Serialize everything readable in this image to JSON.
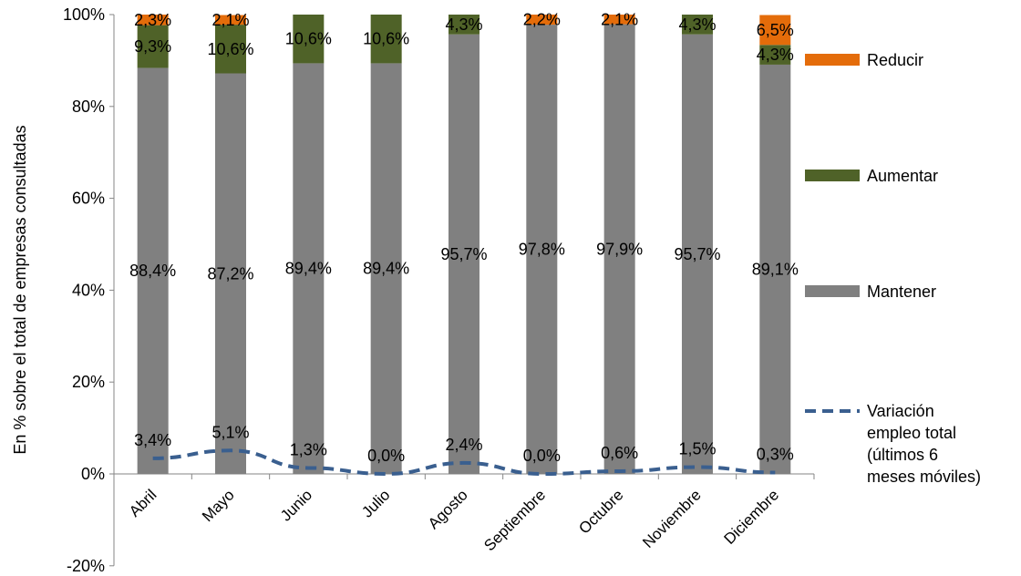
{
  "chart_data": {
    "type": "bar",
    "stacked": true,
    "ylabel": "En % sobre el total de empresas consultadas",
    "ylim": [
      -20,
      100
    ],
    "yticks": [
      "-20%",
      "0%",
      "20%",
      "40%",
      "60%",
      "80%",
      "100%"
    ],
    "grid": false,
    "legend_position": "right",
    "categories": [
      "Abril",
      "Mayo",
      "Junio",
      "Julio",
      "Agosto",
      "Septiembre",
      "Octubre",
      "Noviembre",
      "Diciembre"
    ],
    "series": [
      {
        "name": "Mantener",
        "type": "bar",
        "color": "#808080",
        "values": [
          88.4,
          87.2,
          89.4,
          89.4,
          95.7,
          97.8,
          97.9,
          95.7,
          89.1
        ],
        "labels": [
          "88,4%",
          "87,2%",
          "89,4%",
          "89,4%",
          "95,7%",
          "97,8%",
          "97,9%",
          "95,7%",
          "89,1%"
        ]
      },
      {
        "name": "Aumentar",
        "type": "bar",
        "color": "#4f6228",
        "values": [
          9.3,
          10.6,
          10.6,
          10.6,
          4.3,
          0,
          0,
          4.3,
          4.3
        ],
        "labels": [
          "9,3%",
          "10,6%",
          "10,6%",
          "10,6%",
          "4,3%",
          "",
          "",
          "4,3%",
          "4,3%"
        ]
      },
      {
        "name": "Reducir",
        "type": "bar",
        "color": "#e46c0a",
        "values": [
          2.3,
          2.1,
          0,
          0,
          0,
          2.2,
          2.1,
          0,
          6.5
        ],
        "labels": [
          "2,3%",
          "2,1%",
          "",
          "",
          "",
          "2,2%",
          "2,1%",
          "",
          "6,5%"
        ]
      },
      {
        "name": "Variación empleo total (últimos 6 meses móviles)",
        "name_lines": [
          "Variación",
          "empleo total",
          "(últimos 6",
          "meses móviles)"
        ],
        "type": "line",
        "style": "dashed",
        "color": "#3a5f8f",
        "values": [
          3.4,
          5.1,
          1.3,
          0.0,
          2.4,
          0.0,
          0.6,
          1.5,
          0.3
        ],
        "labels": [
          "3,4%",
          "5,1%",
          "1,3%",
          "0,0%",
          "2,4%",
          "0,0%",
          "0,6%",
          "1,5%",
          "0,3%"
        ]
      }
    ]
  }
}
